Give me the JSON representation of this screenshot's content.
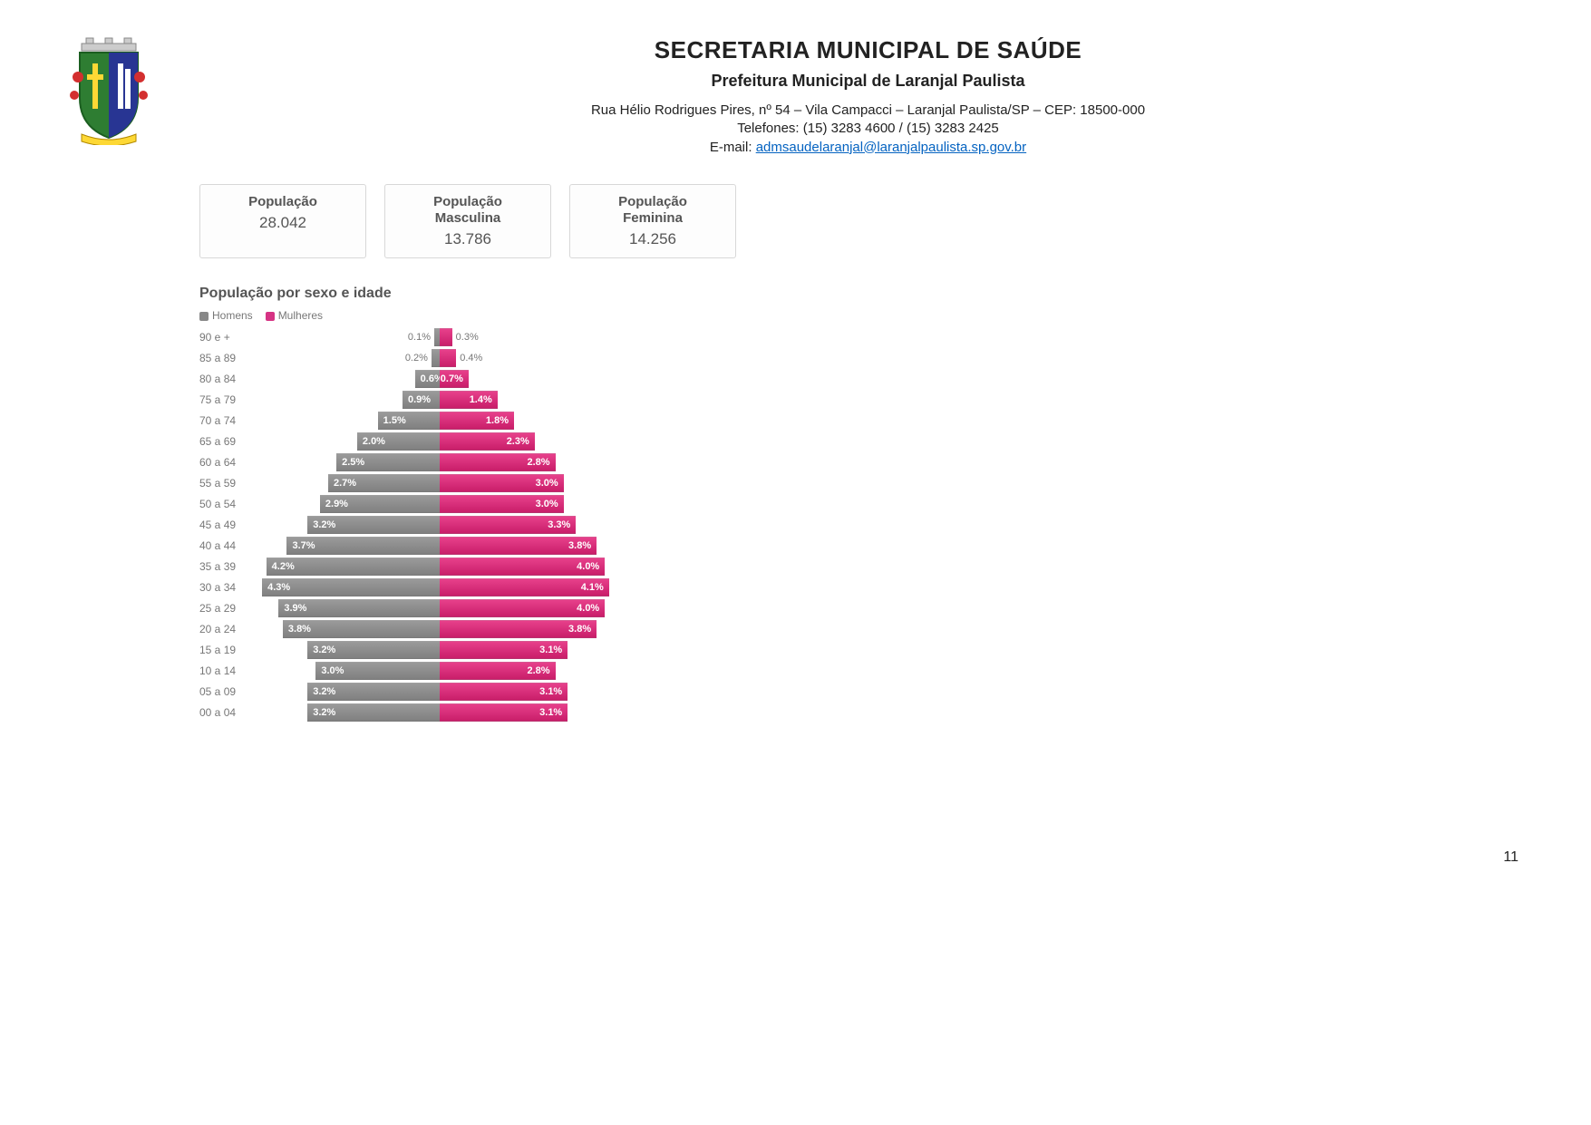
{
  "header": {
    "title": "SECRETARIA MUNICIPAL DE SAÚDE",
    "subtitle": "Prefeitura Municipal de Laranjal Paulista",
    "address": "Rua Hélio Rodrigues Pires, nº 54 – Vila Campacci – Laranjal Paulista/SP – CEP: 18500-000",
    "phones": "Telefones: (15) 3283 4600 / (15) 3283 2425",
    "email_prefix": "E-mail: ",
    "email": "admsaudelaranjal@laranjalpaulista.sp.gov.br"
  },
  "stats": {
    "total": {
      "label1": "População",
      "label2": "",
      "value": "28.042"
    },
    "male": {
      "label1": "População",
      "label2": "Masculina",
      "value": "13.786"
    },
    "female": {
      "label1": "População",
      "label2": "Feminina",
      "value": "14.256"
    }
  },
  "chart": {
    "type": "population-pyramid",
    "title": "População por sexo e idade",
    "legend_male": "Homens",
    "legend_female": "Mulheres",
    "color_male": "#888888",
    "color_female": "#d63384",
    "max_value": 4.5,
    "label_fontsize": 12,
    "bar_fontsize": 11,
    "background_color": "#ffffff",
    "rows": [
      {
        "age": "90 e +",
        "m": 0.1,
        "f": 0.3,
        "m_label": "0.1%",
        "f_label": "0.3%",
        "label_outside": true
      },
      {
        "age": "85 a 89",
        "m": 0.2,
        "f": 0.4,
        "m_label": "0.2%",
        "f_label": "0.4%",
        "label_outside": true
      },
      {
        "age": "80 a 84",
        "m": 0.6,
        "f": 0.7,
        "m_label": "0.6%",
        "f_label": "0.7%",
        "label_outside": false
      },
      {
        "age": "75 a 79",
        "m": 0.9,
        "f": 1.4,
        "m_label": "0.9%",
        "f_label": "1.4%",
        "label_outside": false
      },
      {
        "age": "70 a 74",
        "m": 1.5,
        "f": 1.8,
        "m_label": "1.5%",
        "f_label": "1.8%",
        "label_outside": false
      },
      {
        "age": "65 a 69",
        "m": 2.0,
        "f": 2.3,
        "m_label": "2.0%",
        "f_label": "2.3%",
        "label_outside": false
      },
      {
        "age": "60 a 64",
        "m": 2.5,
        "f": 2.8,
        "m_label": "2.5%",
        "f_label": "2.8%",
        "label_outside": false
      },
      {
        "age": "55 a 59",
        "m": 2.7,
        "f": 3.0,
        "m_label": "2.7%",
        "f_label": "3.0%",
        "label_outside": false
      },
      {
        "age": "50 a 54",
        "m": 2.9,
        "f": 3.0,
        "m_label": "2.9%",
        "f_label": "3.0%",
        "label_outside": false
      },
      {
        "age": "45 a 49",
        "m": 3.2,
        "f": 3.3,
        "m_label": "3.2%",
        "f_label": "3.3%",
        "label_outside": false
      },
      {
        "age": "40 a 44",
        "m": 3.7,
        "f": 3.8,
        "m_label": "3.7%",
        "f_label": "3.8%",
        "label_outside": false
      },
      {
        "age": "35 a 39",
        "m": 4.2,
        "f": 4.0,
        "m_label": "4.2%",
        "f_label": "4.0%",
        "label_outside": false
      },
      {
        "age": "30 a 34",
        "m": 4.3,
        "f": 4.1,
        "m_label": "4.3%",
        "f_label": "4.1%",
        "label_outside": false
      },
      {
        "age": "25 a 29",
        "m": 3.9,
        "f": 4.0,
        "m_label": "3.9%",
        "f_label": "4.0%",
        "label_outside": false
      },
      {
        "age": "20 a 24",
        "m": 3.8,
        "f": 3.8,
        "m_label": "3.8%",
        "f_label": "3.8%",
        "label_outside": false
      },
      {
        "age": "15 a 19",
        "m": 3.2,
        "f": 3.1,
        "m_label": "3.2%",
        "f_label": "3.1%",
        "label_outside": false
      },
      {
        "age": "10 a 14",
        "m": 3.0,
        "f": 2.8,
        "m_label": "3.0%",
        "f_label": "2.8%",
        "label_outside": false
      },
      {
        "age": "05 a 09",
        "m": 3.2,
        "f": 3.1,
        "m_label": "3.2%",
        "f_label": "3.1%",
        "label_outside": false
      },
      {
        "age": "00 a 04",
        "m": 3.2,
        "f": 3.1,
        "m_label": "3.2%",
        "f_label": "3.1%",
        "label_outside": false
      }
    ]
  },
  "page_number": "11"
}
